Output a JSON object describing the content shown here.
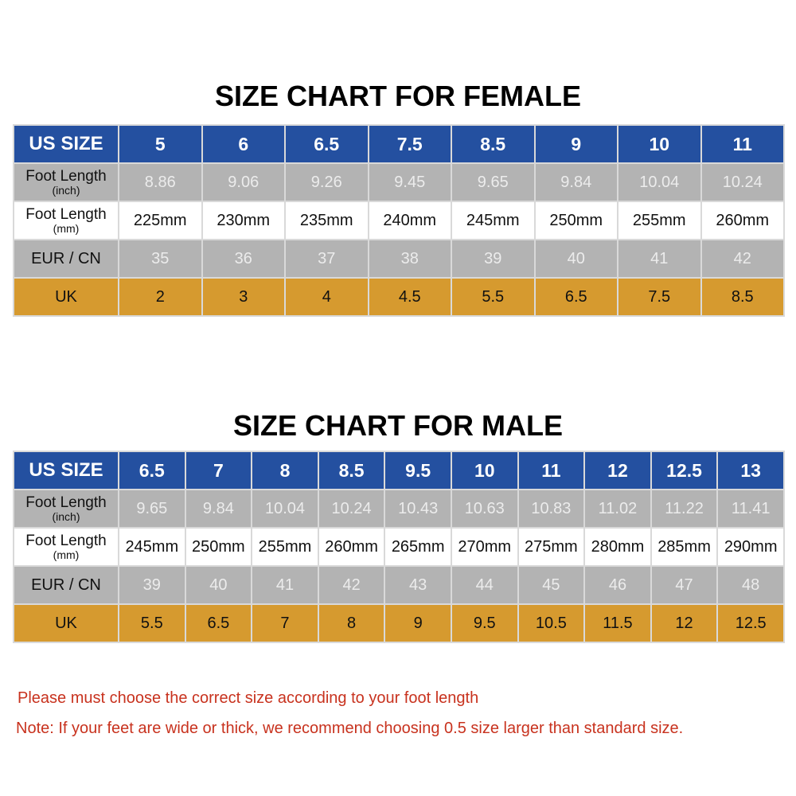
{
  "colors": {
    "header_blue": "#2450a0",
    "gray_row": "#b3b3b3",
    "uk_orange": "#d69a2f",
    "note_red": "#c8321e"
  },
  "row_labels": {
    "us": "US SIZE",
    "inch_main": "Foot Length",
    "inch_sub": "(inch)",
    "mm_main": "Foot Length",
    "mm_sub": "(mm)",
    "eur": "EUR / CN",
    "uk": "UK"
  },
  "female": {
    "title": "SIZE CHART FOR FEMALE",
    "us": [
      "5",
      "6",
      "6.5",
      "7.5",
      "8.5",
      "9",
      "10",
      "11"
    ],
    "inch": [
      "8.86",
      "9.06",
      "9.26",
      "9.45",
      "9.65",
      "9.84",
      "10.04",
      "10.24"
    ],
    "mm": [
      "225mm",
      "230mm",
      "235mm",
      "240mm",
      "245mm",
      "250mm",
      "255mm",
      "260mm"
    ],
    "eur": [
      "35",
      "36",
      "37",
      "38",
      "39",
      "40",
      "41",
      "42"
    ],
    "uk": [
      "2",
      "3",
      "4",
      "4.5",
      "5.5",
      "6.5",
      "7.5",
      "8.5"
    ]
  },
  "male": {
    "title": "SIZE CHART FOR MALE",
    "us": [
      "6.5",
      "7",
      "8",
      "8.5",
      "9.5",
      "10",
      "11",
      "12",
      "12.5",
      "13"
    ],
    "inch": [
      "9.65",
      "9.84",
      "10.04",
      "10.24",
      "10.43",
      "10.63",
      "10.83",
      "11.02",
      "11.22",
      "11.41"
    ],
    "mm": [
      "245mm",
      "250mm",
      "255mm",
      "260mm",
      "265mm",
      "270mm",
      "275mm",
      "280mm",
      "285mm",
      "290mm"
    ],
    "eur": [
      "39",
      "40",
      "41",
      "42",
      "43",
      "44",
      "45",
      "46",
      "47",
      "48"
    ],
    "uk": [
      "5.5",
      "6.5",
      "7",
      "8",
      "9",
      "9.5",
      "10.5",
      "11.5",
      "12",
      "12.5"
    ]
  },
  "notes": {
    "line1": "Please must choose the correct size  according to your foot length",
    "line2": "Note: If your feet are wide or thick, we recommend choosing 0.5 size larger than standard size."
  }
}
